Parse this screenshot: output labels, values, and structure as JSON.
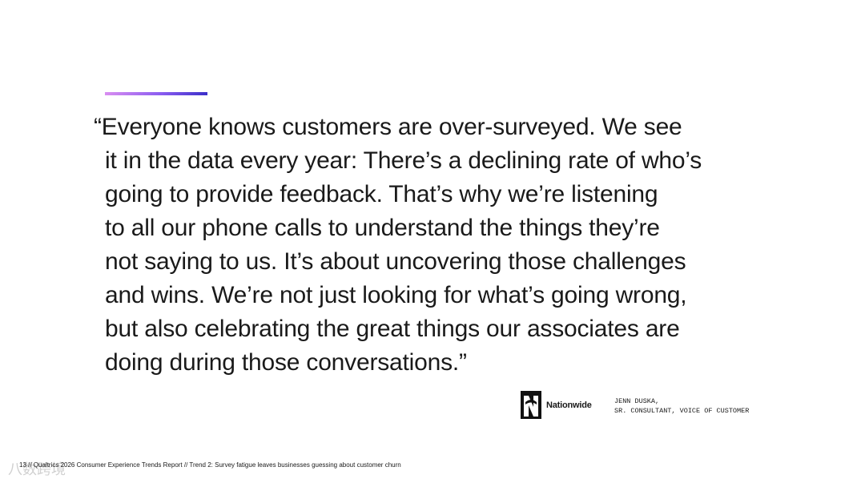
{
  "quote": {
    "lines": [
      "“Everyone knows customers are over-surveyed. We see",
      "it in the data every year: There’s a declining rate of who’s",
      "going to provide feedback. That’s why we’re listening",
      "to all our phone calls to understand the things they’re",
      "not saying to us. It’s about uncovering those challenges",
      "and wins. We’re not just looking for what’s going wrong,",
      "but also celebrating the great things our associates are",
      "doing during those conversations.”"
    ]
  },
  "logo": {
    "name": "Nationwide"
  },
  "attribution": {
    "name": "JENN DUSKA,",
    "role": "SR. CONSULTANT, VOICE OF CUSTOMER"
  },
  "footer": {
    "text": "13 // Qualtrics 2026 Consumer Experience Trends Report // Trend 2: Survey fatigue leaves businesses guessing about customer churn"
  },
  "watermark": {
    "text": "八数跨境"
  }
}
